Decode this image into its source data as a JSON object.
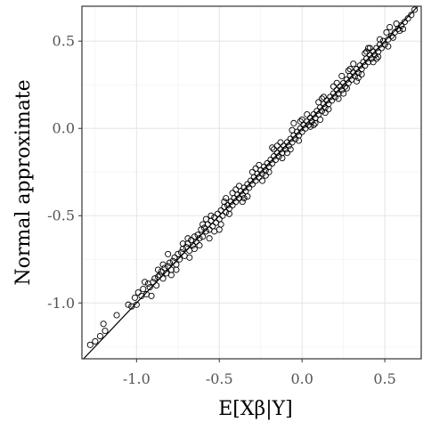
{
  "chart_data": {
    "type": "scatter",
    "xlabel": "E[Xβ|Y]",
    "ylabel": "Normal approximate",
    "xlim": [
      -1.33,
      0.72
    ],
    "ylim": [
      -1.32,
      0.7
    ],
    "x_ticks": [
      -1.0,
      -0.5,
      0.0,
      0.5
    ],
    "x_tick_labels": [
      "-1.0",
      "-0.5",
      "0.0",
      "0.5"
    ],
    "y_ticks": [
      -1.0,
      -0.5,
      0.0,
      0.5
    ],
    "y_tick_labels": [
      "-1.0",
      "-0.5",
      "0.0",
      "0.5"
    ],
    "grid": true,
    "reference_line": {
      "slope": 1,
      "intercept": 0
    },
    "marker": "open-circle",
    "points": [
      [
        -1.28,
        -1.24
      ],
      [
        -1.25,
        -1.22
      ],
      [
        -1.22,
        -1.19
      ],
      [
        -1.2,
        -1.12
      ],
      [
        -1.19,
        -1.16
      ],
      [
        -1.12,
        -1.07
      ],
      [
        -1.05,
        -1.01
      ],
      [
        -1.03,
        -1.02
      ],
      [
        -1.01,
        -0.97
      ],
      [
        -0.99,
        -0.94
      ],
      [
        -0.97,
        -0.96
      ],
      [
        -0.96,
        -0.92
      ],
      [
        -0.94,
        -0.95
      ],
      [
        -0.93,
        -0.89
      ],
      [
        -0.92,
        -0.91
      ],
      [
        -0.9,
        -0.88
      ],
      [
        -0.89,
        -0.86
      ],
      [
        -0.88,
        -0.9
      ],
      [
        -0.87,
        -0.85
      ],
      [
        -0.86,
        -0.84
      ],
      [
        -0.85,
        -0.82
      ],
      [
        -0.84,
        -0.86
      ],
      [
        -0.83,
        -0.8
      ],
      [
        -0.82,
        -0.83
      ],
      [
        -0.81,
        -0.79
      ],
      [
        -0.8,
        -0.77
      ],
      [
        -0.79,
        -0.81
      ],
      [
        -0.78,
        -0.76
      ],
      [
        -0.77,
        -0.74
      ],
      [
        -0.76,
        -0.78
      ],
      [
        -0.75,
        -0.72
      ],
      [
        -0.74,
        -0.75
      ],
      [
        -0.73,
        -0.71
      ],
      [
        -0.72,
        -0.69
      ],
      [
        -0.71,
        -0.73
      ],
      [
        -0.7,
        -0.68
      ],
      [
        -0.69,
        -0.66
      ],
      [
        -0.68,
        -0.7
      ],
      [
        -0.67,
        -0.64
      ],
      [
        -0.66,
        -0.67
      ],
      [
        -0.65,
        -0.62
      ],
      [
        -0.64,
        -0.65
      ],
      [
        -0.63,
        -0.61
      ],
      [
        -0.62,
        -0.63
      ],
      [
        -0.61,
        -0.58
      ],
      [
        -0.6,
        -0.62
      ],
      [
        -0.59,
        -0.57
      ],
      [
        -0.58,
        -0.59
      ],
      [
        -0.57,
        -0.55
      ],
      [
        -0.56,
        -0.58
      ],
      [
        -0.55,
        -0.53
      ],
      [
        -0.54,
        -0.56
      ],
      [
        -0.53,
        -0.51
      ],
      [
        -0.52,
        -0.54
      ],
      [
        -0.51,
        -0.49
      ],
      [
        -0.5,
        -0.52
      ],
      [
        -0.49,
        -0.47
      ],
      [
        -0.48,
        -0.5
      ],
      [
        -0.47,
        -0.45
      ],
      [
        -0.46,
        -0.48
      ],
      [
        -0.45,
        -0.44
      ],
      [
        -0.44,
        -0.46
      ],
      [
        -0.43,
        -0.42
      ],
      [
        -0.42,
        -0.44
      ],
      [
        -0.41,
        -0.4
      ],
      [
        -0.4,
        -0.42
      ],
      [
        -0.39,
        -0.38
      ],
      [
        -0.38,
        -0.4
      ],
      [
        -0.37,
        -0.36
      ],
      [
        -0.36,
        -0.38
      ],
      [
        -0.35,
        -0.34
      ],
      [
        -0.34,
        -0.36
      ],
      [
        -0.33,
        -0.32
      ],
      [
        -0.32,
        -0.34
      ],
      [
        -0.31,
        -0.3
      ],
      [
        -0.3,
        -0.32
      ],
      [
        -0.29,
        -0.28
      ],
      [
        -0.28,
        -0.3
      ],
      [
        -0.27,
        -0.26
      ],
      [
        -0.26,
        -0.28
      ],
      [
        -0.25,
        -0.24
      ],
      [
        -0.24,
        -0.26
      ],
      [
        -0.23,
        -0.22
      ],
      [
        -0.22,
        -0.24
      ],
      [
        -0.21,
        -0.2
      ],
      [
        -0.2,
        -0.22
      ],
      [
        -0.19,
        -0.18
      ],
      [
        -0.18,
        -0.2
      ],
      [
        -0.17,
        -0.16
      ],
      [
        -0.16,
        -0.18
      ],
      [
        -0.15,
        -0.14
      ],
      [
        -0.14,
        -0.16
      ],
      [
        -0.13,
        -0.12
      ],
      [
        -0.12,
        -0.14
      ],
      [
        -0.11,
        -0.1
      ],
      [
        -0.1,
        -0.12
      ],
      [
        -0.09,
        -0.08
      ],
      [
        -0.08,
        -0.1
      ],
      [
        -0.07,
        -0.06
      ],
      [
        -0.06,
        -0.08
      ],
      [
        -0.05,
        -0.04
      ],
      [
        -0.04,
        -0.06
      ],
      [
        -0.03,
        -0.02
      ],
      [
        -0.02,
        -0.04
      ],
      [
        -0.01,
        0.0
      ],
      [
        0.0,
        -0.02
      ],
      [
        0.01,
        0.02
      ],
      [
        0.02,
        0.0
      ],
      [
        0.03,
        0.04
      ],
      [
        0.04,
        0.02
      ],
      [
        0.05,
        0.06
      ],
      [
        0.06,
        0.04
      ],
      [
        0.07,
        0.08
      ],
      [
        0.08,
        0.06
      ],
      [
        0.09,
        0.1
      ],
      [
        0.1,
        0.08
      ],
      [
        0.11,
        0.12
      ],
      [
        0.12,
        0.1
      ],
      [
        0.13,
        0.14
      ],
      [
        0.14,
        0.12
      ],
      [
        0.15,
        0.16
      ],
      [
        0.16,
        0.14
      ],
      [
        0.17,
        0.18
      ],
      [
        0.18,
        0.16
      ],
      [
        0.19,
        0.2
      ],
      [
        0.2,
        0.18
      ],
      [
        0.21,
        0.22
      ],
      [
        0.22,
        0.2
      ],
      [
        0.23,
        0.24
      ],
      [
        0.24,
        0.22
      ],
      [
        0.25,
        0.26
      ],
      [
        0.26,
        0.24
      ],
      [
        0.27,
        0.28
      ],
      [
        0.28,
        0.26
      ],
      [
        0.29,
        0.3
      ],
      [
        0.3,
        0.28
      ],
      [
        0.31,
        0.32
      ],
      [
        0.32,
        0.3
      ],
      [
        0.33,
        0.34
      ],
      [
        0.34,
        0.32
      ],
      [
        0.35,
        0.36
      ],
      [
        0.36,
        0.34
      ],
      [
        0.37,
        0.38
      ],
      [
        0.38,
        0.36
      ],
      [
        0.39,
        0.4
      ],
      [
        0.4,
        0.38
      ],
      [
        0.41,
        0.42
      ],
      [
        0.42,
        0.4
      ],
      [
        0.43,
        0.44
      ],
      [
        0.44,
        0.42
      ],
      [
        0.45,
        0.46
      ],
      [
        0.46,
        0.44
      ],
      [
        0.47,
        0.48
      ],
      [
        0.48,
        0.46
      ],
      [
        0.49,
        0.5
      ],
      [
        0.5,
        0.48
      ],
      [
        0.52,
        0.51
      ],
      [
        0.54,
        0.53
      ],
      [
        0.56,
        0.55
      ],
      [
        0.58,
        0.57
      ],
      [
        0.6,
        0.59
      ],
      [
        0.62,
        0.61
      ],
      [
        0.64,
        0.63
      ],
      [
        0.66,
        0.65
      ],
      [
        0.68,
        0.68
      ],
      [
        -0.87,
        -0.81
      ],
      [
        -0.79,
        -0.84
      ],
      [
        -0.72,
        -0.66
      ],
      [
        -0.65,
        -0.69
      ],
      [
        -0.58,
        -0.52
      ],
      [
        -0.53,
        -0.59
      ],
      [
        -0.47,
        -0.42
      ],
      [
        -0.44,
        -0.49
      ],
      [
        -0.38,
        -0.33
      ],
      [
        -0.33,
        -0.39
      ],
      [
        -0.26,
        -0.21
      ],
      [
        -0.22,
        -0.27
      ],
      [
        -0.15,
        -0.1
      ],
      [
        -0.12,
        -0.17
      ],
      [
        -0.06,
        -0.01
      ],
      [
        -0.02,
        -0.07
      ],
      [
        0.03,
        0.08
      ],
      [
        0.07,
        0.02
      ],
      [
        0.12,
        0.17
      ],
      [
        0.16,
        0.11
      ],
      [
        0.21,
        0.26
      ],
      [
        0.25,
        0.2
      ],
      [
        0.29,
        0.34
      ],
      [
        0.34,
        0.29
      ],
      [
        0.38,
        0.43
      ],
      [
        0.43,
        0.38
      ],
      [
        0.47,
        0.51
      ],
      [
        0.52,
        0.47
      ],
      [
        0.57,
        0.6
      ],
      [
        0.61,
        0.57
      ],
      [
        -0.5,
        -0.58
      ],
      [
        -0.42,
        -0.37
      ],
      [
        -0.36,
        -0.42
      ],
      [
        -0.28,
        -0.23
      ],
      [
        -0.24,
        -0.3
      ],
      [
        -0.17,
        -0.12
      ],
      [
        -0.09,
        -0.14
      ],
      [
        -0.01,
        0.04
      ],
      [
        0.05,
        0.01
      ],
      [
        0.1,
        0.15
      ],
      [
        0.14,
        0.09
      ],
      [
        0.19,
        0.24
      ],
      [
        0.27,
        0.23
      ],
      [
        0.31,
        0.37
      ],
      [
        0.36,
        0.31
      ],
      [
        0.41,
        0.46
      ],
      [
        0.45,
        0.4
      ],
      [
        0.55,
        0.52
      ],
      [
        -0.95,
        -0.88
      ],
      [
        -0.91,
        -0.96
      ],
      [
        -0.84,
        -0.78
      ],
      [
        -0.76,
        -0.81
      ],
      [
        -0.69,
        -0.63
      ],
      [
        -0.62,
        -0.67
      ],
      [
        -0.55,
        -0.5
      ],
      [
        -0.49,
        -0.55
      ],
      [
        -0.4,
        -0.35
      ],
      [
        -0.35,
        -0.4
      ],
      [
        -0.3,
        -0.25
      ],
      [
        -0.2,
        -0.25
      ],
      [
        -0.13,
        -0.08
      ],
      [
        -0.07,
        -0.12
      ],
      [
        0.0,
        0.05
      ],
      [
        0.08,
        0.03
      ],
      [
        0.13,
        0.18
      ],
      [
        0.22,
        0.17
      ],
      [
        0.28,
        0.33
      ],
      [
        0.33,
        0.27
      ],
      [
        0.39,
        0.44
      ],
      [
        0.46,
        0.41
      ],
      [
        0.51,
        0.55
      ],
      [
        0.59,
        0.56
      ],
      [
        -0.81,
        -0.72
      ],
      [
        -0.6,
        -0.55
      ],
      [
        -0.56,
        -0.63
      ],
      [
        -0.18,
        -0.11
      ],
      [
        0.11,
        0.05
      ],
      [
        0.4,
        0.46
      ],
      [
        -0.68,
        -0.74
      ],
      [
        -0.46,
        -0.4
      ],
      [
        -0.05,
        0.03
      ],
      [
        0.24,
        0.3
      ],
      [
        0.53,
        0.58
      ],
      [
        -1.0,
        -1.01
      ]
    ]
  }
}
